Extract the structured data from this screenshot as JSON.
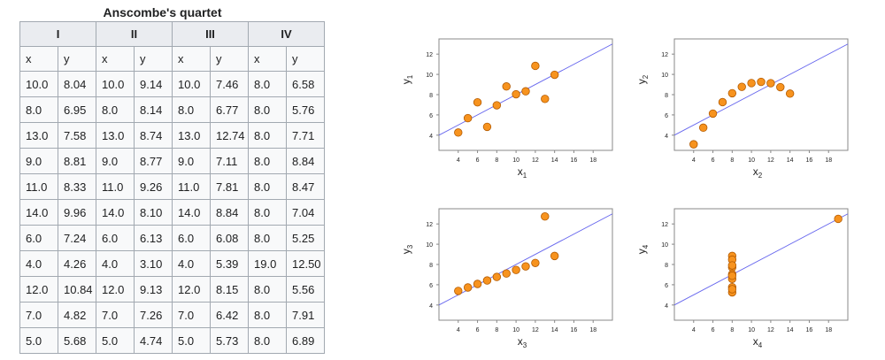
{
  "table": {
    "title": "Anscombe's quartet",
    "groups": [
      "I",
      "II",
      "III",
      "IV"
    ],
    "col_x": "x",
    "col_y": "y",
    "rows": [
      [
        "10.0",
        "8.04",
        "10.0",
        "9.14",
        "10.0",
        "7.46",
        "8.0",
        "6.58"
      ],
      [
        "8.0",
        "6.95",
        "8.0",
        "8.14",
        "8.0",
        "6.77",
        "8.0",
        "5.76"
      ],
      [
        "13.0",
        "7.58",
        "13.0",
        "8.74",
        "13.0",
        "12.74",
        "8.0",
        "7.71"
      ],
      [
        "9.0",
        "8.81",
        "9.0",
        "8.77",
        "9.0",
        "7.11",
        "8.0",
        "8.84"
      ],
      [
        "11.0",
        "8.33",
        "11.0",
        "9.26",
        "11.0",
        "7.81",
        "8.0",
        "8.47"
      ],
      [
        "14.0",
        "9.96",
        "14.0",
        "8.10",
        "14.0",
        "8.84",
        "8.0",
        "7.04"
      ],
      [
        "6.0",
        "7.24",
        "6.0",
        "6.13",
        "6.0",
        "6.08",
        "8.0",
        "5.25"
      ],
      [
        "4.0",
        "4.26",
        "4.0",
        "3.10",
        "4.0",
        "5.39",
        "19.0",
        "12.50"
      ],
      [
        "12.0",
        "10.84",
        "12.0",
        "9.13",
        "12.0",
        "8.15",
        "8.0",
        "5.56"
      ],
      [
        "7.0",
        "4.82",
        "7.0",
        "7.26",
        "7.0",
        "6.42",
        "8.0",
        "7.91"
      ],
      [
        "5.0",
        "5.68",
        "5.0",
        "4.74",
        "5.0",
        "5.73",
        "8.0",
        "6.89"
      ]
    ]
  },
  "chart_data": [
    {
      "type": "scatter",
      "xlabel": "x1",
      "ylabel": "y1",
      "xlim": [
        2,
        20
      ],
      "ylim": [
        2.5,
        13.5
      ],
      "xticks": [
        4,
        6,
        8,
        10,
        12,
        14,
        16,
        18
      ],
      "yticks": [
        4,
        6,
        8,
        10,
        12
      ],
      "x": [
        10,
        8,
        13,
        9,
        11,
        14,
        6,
        4,
        12,
        7,
        5
      ],
      "y": [
        8.04,
        6.95,
        7.58,
        8.81,
        8.33,
        9.96,
        7.24,
        4.26,
        10.84,
        4.82,
        5.68
      ],
      "fit": {
        "intercept": 3,
        "slope": 0.5
      },
      "grid": false
    },
    {
      "type": "scatter",
      "xlabel": "x2",
      "ylabel": "y2",
      "xlim": [
        2,
        20
      ],
      "ylim": [
        2.5,
        13.5
      ],
      "xticks": [
        4,
        6,
        8,
        10,
        12,
        14,
        16,
        18
      ],
      "yticks": [
        4,
        6,
        8,
        10,
        12
      ],
      "x": [
        10,
        8,
        13,
        9,
        11,
        14,
        6,
        4,
        12,
        7,
        5
      ],
      "y": [
        9.14,
        8.14,
        8.74,
        8.77,
        9.26,
        8.1,
        6.13,
        3.1,
        9.13,
        7.26,
        4.74
      ],
      "fit": {
        "intercept": 3,
        "slope": 0.5
      },
      "grid": false
    },
    {
      "type": "scatter",
      "xlabel": "x3",
      "ylabel": "y3",
      "xlim": [
        2,
        20
      ],
      "ylim": [
        2.5,
        13.5
      ],
      "xticks": [
        4,
        6,
        8,
        10,
        12,
        14,
        16,
        18
      ],
      "yticks": [
        4,
        6,
        8,
        10,
        12
      ],
      "x": [
        10,
        8,
        13,
        9,
        11,
        14,
        6,
        4,
        12,
        7,
        5
      ],
      "y": [
        7.46,
        6.77,
        12.74,
        7.11,
        7.81,
        8.84,
        6.08,
        5.39,
        8.15,
        6.42,
        5.73
      ],
      "fit": {
        "intercept": 3,
        "slope": 0.5
      },
      "grid": false
    },
    {
      "type": "scatter",
      "xlabel": "x4",
      "ylabel": "y4",
      "xlim": [
        2,
        20
      ],
      "ylim": [
        2.5,
        13.5
      ],
      "xticks": [
        4,
        6,
        8,
        10,
        12,
        14,
        16,
        18
      ],
      "yticks": [
        4,
        6,
        8,
        10,
        12
      ],
      "x": [
        8,
        8,
        8,
        8,
        8,
        8,
        8,
        19,
        8,
        8,
        8
      ],
      "y": [
        6.58,
        5.76,
        7.71,
        8.84,
        8.47,
        7.04,
        5.25,
        12.5,
        5.56,
        7.91,
        6.89
      ],
      "fit": {
        "intercept": 3,
        "slope": 0.5
      },
      "grid": false
    }
  ],
  "colors": {
    "point_fill": "#f7931e",
    "point_stroke": "#b35a00",
    "fit_line": "#6666ee",
    "axes": "#888888"
  }
}
